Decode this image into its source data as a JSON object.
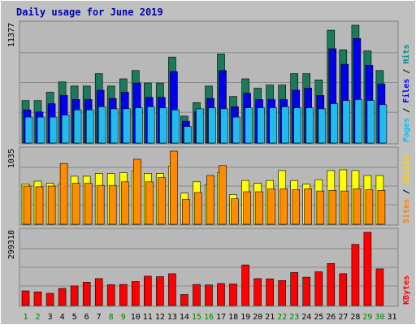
{
  "chart_data": {
    "type": "bar",
    "title": "Daily usage for June 2019",
    "categories": [
      "1",
      "2",
      "3",
      "4",
      "5",
      "6",
      "7",
      "8",
      "9",
      "10",
      "11",
      "12",
      "13",
      "14",
      "15",
      "16",
      "17",
      "18",
      "19",
      "20",
      "21",
      "22",
      "23",
      "24",
      "25",
      "26",
      "27",
      "28",
      "29",
      "30",
      "31"
    ],
    "weekend_days": [
      "1",
      "2",
      "8",
      "9",
      "15",
      "16",
      "22",
      "23",
      "29",
      "30"
    ],
    "panels": [
      {
        "name": "hits-files-pages",
        "ymax_label": "11377",
        "ymax": 11377,
        "side_labels": [
          {
            "text": "Pages",
            "color": "#00bfff"
          },
          {
            "text": " / ",
            "color": "#000000"
          },
          {
            "text": "Files",
            "color": "#0000ff"
          },
          {
            "text": " / ",
            "color": "#000000"
          },
          {
            "text": "Hits",
            "color": "#008b8b"
          }
        ],
        "series": [
          {
            "name": "Hits",
            "color": "#1a7a5a",
            "values": [
              4100,
              4100,
              4900,
              5900,
              5500,
              5500,
              6700,
              5500,
              6200,
              7000,
              5800,
              5800,
              8300,
              2600,
              3900,
              5500,
              8600,
              4500,
              6200,
              5300,
              5600,
              5600,
              6700,
              6700,
              6100,
              10900,
              9000,
              11377,
              8900,
              7000,
              0
            ]
          },
          {
            "name": "Files",
            "color": "#0000ee",
            "values": [
              3200,
              3000,
              3800,
              4600,
              4200,
              4200,
              5100,
              4300,
              4900,
              5800,
              4400,
              4400,
              6900,
              2100,
              3000,
              4300,
              7000,
              3500,
              4800,
              4200,
              4200,
              4200,
              5100,
              5300,
              4600,
              9100,
              7600,
              10100,
              7500,
              5700,
              0
            ]
          },
          {
            "name": "Pages",
            "color": "#22bbee",
            "values": [
              2500,
              2500,
              2500,
              2700,
              3200,
              3200,
              3500,
              3300,
              3300,
              3400,
              3500,
              3400,
              3200,
              1600,
              3300,
              3400,
              3300,
              2500,
              3400,
              3400,
              3400,
              3500,
              3400,
              3400,
              3300,
              3800,
              4100,
              4200,
              4100,
              3700,
              0
            ]
          }
        ]
      },
      {
        "name": "visits-sites",
        "ymax_label": "1035",
        "ymax": 1035,
        "side_labels": [
          {
            "text": "Sites",
            "color": "#ff8000"
          },
          {
            "text": " / ",
            "color": "#000000"
          },
          {
            "text": "Visits",
            "color": "#ffd000"
          }
        ],
        "series": [
          {
            "name": "Visits",
            "color": "#ffff00",
            "values": [
              570,
              610,
              580,
              570,
              680,
              680,
              720,
              720,
              730,
              750,
              720,
              720,
              820,
              440,
              600,
              560,
              730,
              420,
              620,
              580,
              620,
              760,
              620,
              570,
              630,
              760,
              770,
              760,
              690,
              690,
              0
            ]
          },
          {
            "name": "Sites",
            "color": "#ff8c00",
            "values": [
              540,
              530,
              540,
              860,
              580,
              580,
              550,
              550,
              600,
              920,
              600,
              660,
              1035,
              350,
              450,
              690,
              830,
              360,
              460,
              460,
              500,
              500,
              490,
              500,
              470,
              480,
              470,
              500,
              490,
              480,
              0
            ]
          }
        ]
      },
      {
        "name": "kbytes",
        "ymax_label": "299318",
        "ymax": 299318,
        "side_labels": [
          {
            "text": "KBytes",
            "color": "#ff0000"
          }
        ],
        "series": [
          {
            "name": "KBytes",
            "color": "#ff0000",
            "values": [
              60000,
              56000,
              50000,
              70000,
              80000,
              95000,
              110000,
              85000,
              86000,
              98000,
              120000,
              118000,
              130000,
              45000,
              86000,
              84000,
              90000,
              88000,
              166000,
              110000,
              109000,
              102000,
              135000,
              116000,
              138000,
              172000,
              130000,
              250000,
              299318,
              150000,
              0
            ]
          }
        ]
      }
    ]
  }
}
